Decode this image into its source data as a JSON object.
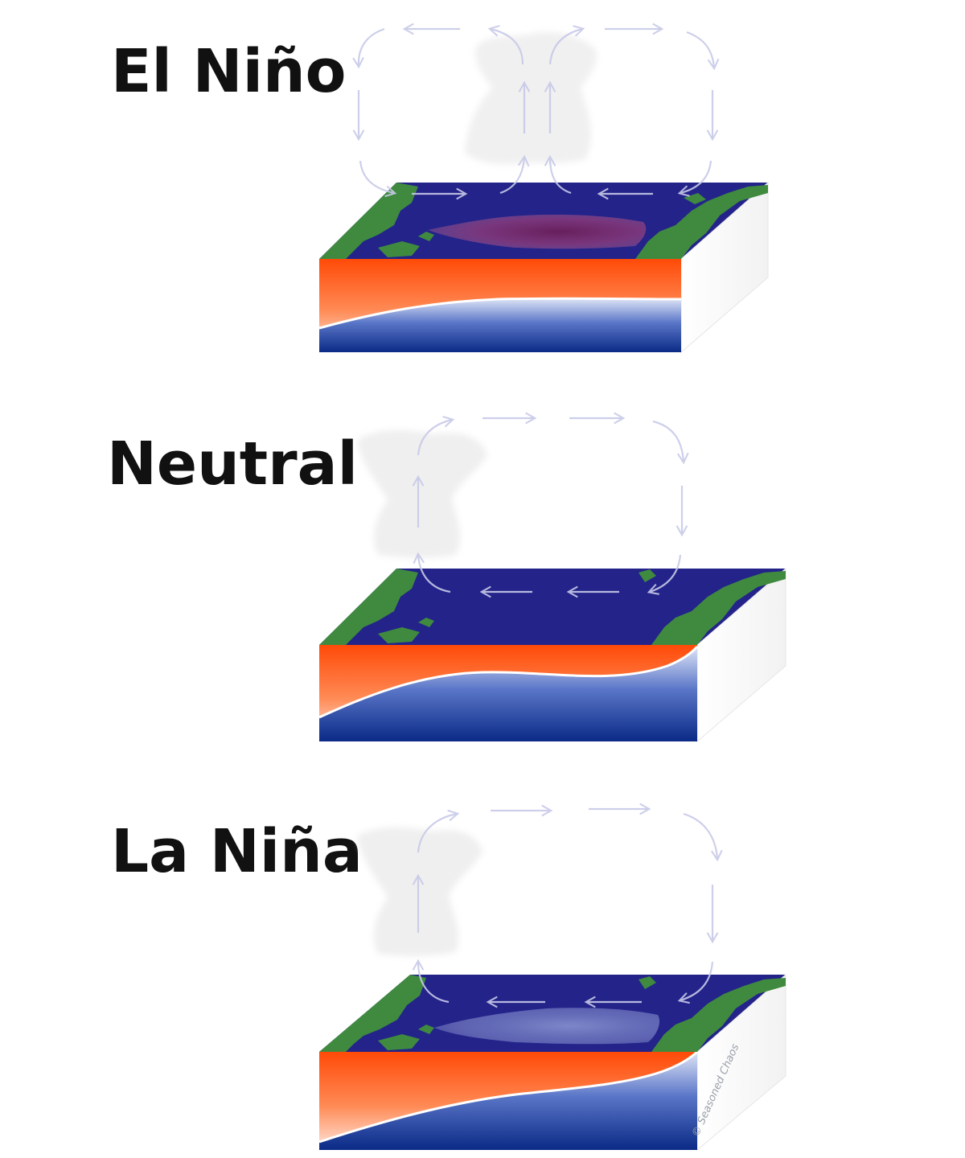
{
  "panels": [
    {
      "id": "el-nino",
      "label": "El Niño",
      "state": "el-nino"
    },
    {
      "id": "neutral",
      "label": "Neutral",
      "state": "neutral"
    },
    {
      "id": "la-nina",
      "label": "La Niña",
      "state": "la-nina"
    }
  ],
  "watermark": "© Seasoned Chaos",
  "colors": {
    "ocean_surface": "#23238a",
    "land": "#3f8a3f",
    "warm_layer_top": "#ff5a12",
    "cold_layer_bottom": "#0c2f8f",
    "thermocline": "#ffffff",
    "circulation_arrow": "#c8cae8",
    "cloud": "#e8e8e8",
    "warm_anomaly": "#8a2c6e",
    "cool_anomaly": "#a8b0e0"
  },
  "icons": [
    "arrow-icon",
    "cloud-icon"
  ]
}
